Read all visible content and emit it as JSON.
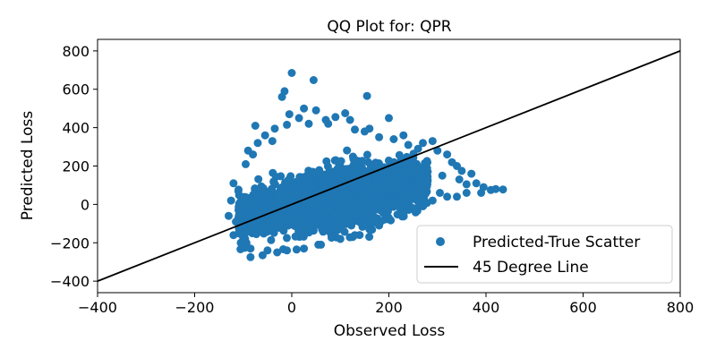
{
  "chart_data": {
    "type": "scatter",
    "title": "QQ Plot for: QPR",
    "xlabel": "Observed Loss",
    "ylabel": "Predicted Loss",
    "xlim": [
      -400,
      800
    ],
    "ylim": [
      -460,
      860
    ],
    "xticks": [
      -400,
      -200,
      0,
      200,
      400,
      600,
      800
    ],
    "yticks": [
      -400,
      -200,
      0,
      200,
      400,
      600,
      800
    ],
    "xtick_labels": [
      "−400",
      "−200",
      "0",
      "200",
      "400",
      "600",
      "800"
    ],
    "ytick_labels": [
      "−400",
      "−200",
      "0",
      "200",
      "400",
      "600",
      "800"
    ],
    "grid": false,
    "legend_position": "lower-right",
    "series": [
      {
        "name": "Predicted-True Scatter",
        "kind": "scatter",
        "color": "#1f77b4",
        "points": [
          [
            0,
            685
          ],
          [
            45,
            648
          ],
          [
            -15,
            590
          ],
          [
            -20,
            560
          ],
          [
            155,
            565
          ],
          [
            25,
            500
          ],
          [
            70,
            440
          ],
          [
            -5,
            470
          ],
          [
            -75,
            410
          ],
          [
            50,
            490
          ],
          [
            110,
            475
          ],
          [
            15,
            450
          ],
          [
            35,
            420
          ],
          [
            -35,
            395
          ],
          [
            90,
            455
          ],
          [
            120,
            440
          ],
          [
            200,
            450
          ],
          [
            -90,
            280
          ],
          [
            -10,
            415
          ],
          [
            75,
            420
          ],
          [
            130,
            390
          ],
          [
            160,
            395
          ],
          [
            -55,
            360
          ],
          [
            230,
            360
          ],
          [
            290,
            330
          ],
          [
            300,
            280
          ],
          [
            320,
            260
          ],
          [
            330,
            220
          ],
          [
            340,
            200
          ],
          [
            350,
            175
          ],
          [
            370,
            160
          ],
          [
            380,
            110
          ],
          [
            395,
            90
          ],
          [
            410,
            75
          ],
          [
            420,
            80
          ],
          [
            435,
            78
          ],
          [
            360,
            105
          ],
          [
            345,
            130
          ],
          [
            310,
            150
          ],
          [
            280,
            170
          ],
          [
            -120,
            110
          ],
          [
            -110,
            70
          ],
          [
            -125,
            20
          ],
          [
            -130,
            -60
          ],
          [
            -115,
            -90
          ],
          [
            -120,
            -160
          ],
          [
            -105,
            -200
          ],
          [
            -85,
            -230
          ],
          [
            -85,
            -275
          ],
          [
            -60,
            -265
          ],
          [
            -50,
            -240
          ],
          [
            -30,
            -250
          ],
          [
            -10,
            -240
          ],
          [
            10,
            -235
          ],
          [
            25,
            -230
          ],
          [
            60,
            -210
          ],
          [
            100,
            -180
          ],
          [
            130,
            -160
          ],
          [
            160,
            -130
          ],
          [
            180,
            -110
          ],
          [
            200,
            -70
          ],
          [
            230,
            -50
          ],
          [
            250,
            -20
          ],
          [
            270,
            -10
          ],
          [
            290,
            20
          ],
          [
            305,
            60
          ],
          [
            320,
            40
          ],
          [
            360,
            60
          ],
          [
            340,
            40
          ],
          [
            390,
            60
          ],
          [
            -70,
            320
          ],
          [
            -40,
            330
          ],
          [
            -80,
            260
          ],
          [
            -95,
            210
          ],
          [
            150,
            380
          ],
          [
            180,
            350
          ],
          [
            240,
            310
          ],
          [
            260,
            290
          ],
          [
            270,
            320
          ],
          [
            210,
            340
          ]
        ],
        "cloud": {
          "description": "dense core",
          "center_x": [
            -20,
            140
          ],
          "center_y": [
            -180,
            280
          ],
          "n": 2600
        }
      },
      {
        "name": "45 Degree Line",
        "kind": "line",
        "color": "#000000",
        "x": [
          -400,
          800
        ],
        "y": [
          -400,
          800
        ]
      }
    ]
  }
}
